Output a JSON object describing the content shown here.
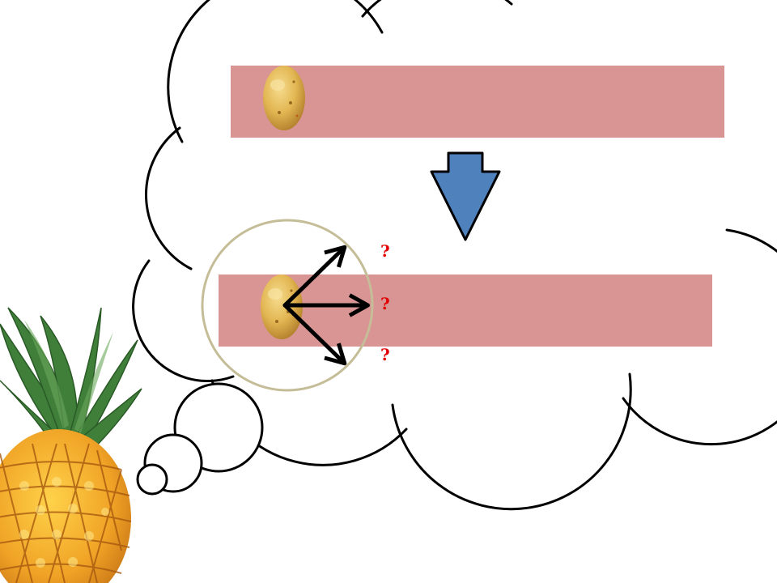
{
  "slide": {
    "background": "#ffffff"
  },
  "thought_bubble": {
    "fill": "#ffffff",
    "stroke": "#000000"
  },
  "strip": {
    "color": "#d99594"
  },
  "arrow": {
    "fill": "#4f81bd",
    "stroke": "#000000"
  },
  "focus_circle": {
    "stroke": "#c4bd97"
  },
  "questions": {
    "color": "#e00000",
    "items": [
      {
        "label": "?"
      },
      {
        "label": "?"
      },
      {
        "label": "?"
      }
    ]
  },
  "icons": {
    "potato": "potato-icon",
    "pineapple": "pineapple-icon",
    "direction_arrows": "arrow-icon"
  }
}
